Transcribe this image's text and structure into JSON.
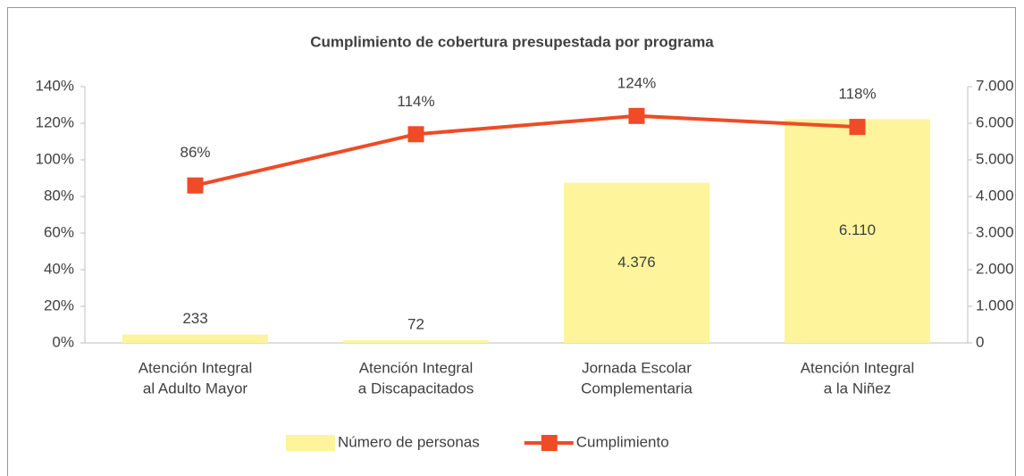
{
  "chart_data": {
    "type": "combo",
    "title": "Cumplimiento de cobertura presupestada por programa",
    "categories": [
      [
        "Atención Integral",
        "al Adulto Mayor"
      ],
      [
        "Atención Integral",
        "a Discapacitados"
      ],
      [
        "Jornada Escolar",
        "Complementaria"
      ],
      [
        "Atención Integral",
        "a la Niñez"
      ]
    ],
    "series": [
      {
        "name": "Número de personas",
        "type": "bar",
        "axis": "y2",
        "color": "#fdf49b",
        "values": [
          233,
          72,
          4376,
          6110
        ],
        "value_labels": [
          "233",
          "72",
          "4.376",
          "6.110"
        ]
      },
      {
        "name": "Cumplimiento",
        "type": "line",
        "color": "#ee4b26",
        "values": [
          86,
          114,
          124,
          118
        ],
        "value_labels": [
          "86%",
          "114%",
          "124%",
          "118%"
        ]
      }
    ],
    "ylim": [
      0,
      140
    ],
    "yticks": [
      {
        "value": 0,
        "label": "0%"
      },
      {
        "value": 20,
        "label": "20%"
      },
      {
        "value": 40,
        "label": "40%"
      },
      {
        "value": 60,
        "label": "60%"
      },
      {
        "value": 80,
        "label": "80%"
      },
      {
        "value": 100,
        "label": "100%"
      },
      {
        "value": 120,
        "label": "120%"
      },
      {
        "value": 140,
        "label": "140%"
      }
    ],
    "y2lim": [
      0,
      7000
    ],
    "y2ticks": [
      0,
      {
        "value": 1000,
        "label": "1.000"
      },
      {
        "value": 2000,
        "label": "2.000"
      },
      {
        "value": 3000,
        "label": "3.000"
      },
      {
        "value": 4000,
        "label": "4.000"
      },
      {
        "value": 5000,
        "label": "5.000"
      },
      {
        "value": 6000,
        "label": "6.000"
      },
      {
        "value": 7000,
        "label": "7.000"
      }
    ],
    "legend": "bottom"
  }
}
